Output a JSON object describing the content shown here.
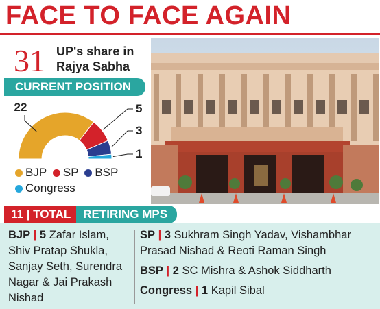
{
  "header": {
    "title": "FACE TO FACE AGAIN"
  },
  "share": {
    "number": "31",
    "label": "UP's share in Rajya Sabha"
  },
  "current_position": {
    "heading": "CURRENT POSITION",
    "segments": [
      {
        "party": "BJP",
        "seats": 22,
        "label": "22",
        "color": "#e5a52a"
      },
      {
        "party": "SP",
        "seats": 5,
        "label": "5",
        "color": "#d3222a"
      },
      {
        "party": "BSP",
        "seats": 3,
        "label": "3",
        "color": "#2a3d8f"
      },
      {
        "party": "Congress",
        "seats": 1,
        "label": "1",
        "color": "#25a7dc"
      }
    ]
  },
  "legend": {
    "bjp": "BJP",
    "sp": "SP",
    "bsp": "BSP",
    "congress": "Congress"
  },
  "retiring": {
    "total_label": "11 | TOTAL",
    "heading": "RETIRING MPS",
    "bjp": {
      "party": "BJP",
      "count": "5",
      "names": "Zafar Islam, Shiv Pratap Shukla, Sanjay Seth, Surendra Nagar & Jai Prakash Nishad"
    },
    "sp": {
      "party": "SP",
      "count": "3",
      "names": "Sukhram Singh Yadav, Vishambhar Prasad Nishad & Reoti Raman Singh"
    },
    "bsp": {
      "party": "BSP",
      "count": "2",
      "names": "SC Mishra & Ashok Siddharth"
    },
    "congress": {
      "party": "Congress",
      "count": "1",
      "names": "Kapil Sibal"
    }
  }
}
